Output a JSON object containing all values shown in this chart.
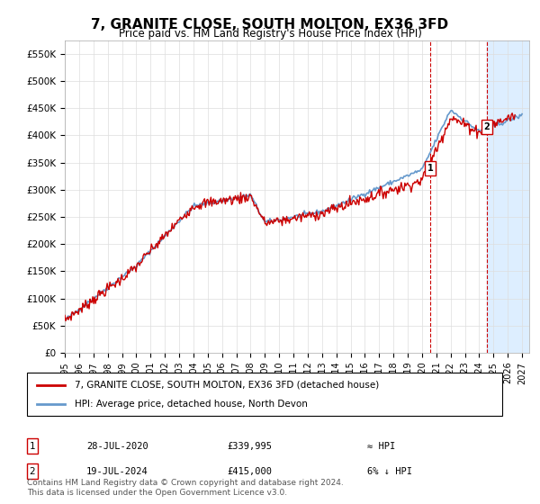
{
  "title": "7, GRANITE CLOSE, SOUTH MOLTON, EX36 3FD",
  "subtitle": "Price paid vs. HM Land Registry's House Price Index (HPI)",
  "ylabel_ticks": [
    "£0",
    "£50K",
    "£100K",
    "£150K",
    "£200K",
    "£250K",
    "£300K",
    "£350K",
    "£400K",
    "£450K",
    "£500K",
    "£550K"
  ],
  "ytick_vals": [
    0,
    50000,
    100000,
    150000,
    200000,
    250000,
    300000,
    350000,
    400000,
    450000,
    500000,
    550000
  ],
  "ylim": [
    0,
    575000
  ],
  "xlim_start": 1995.0,
  "xlim_end": 2027.5,
  "transaction1": {
    "date_num": 2020.57,
    "price": 339995,
    "label": "1"
  },
  "transaction2": {
    "date_num": 2024.54,
    "price": 415000,
    "label": "2"
  },
  "legend_line1": "7, GRANITE CLOSE, SOUTH MOLTON, EX36 3FD (detached house)",
  "legend_line2": "HPI: Average price, detached house, North Devon",
  "table_rows": [
    {
      "num": "1",
      "date": "28-JUL-2020",
      "price": "£339,995",
      "relation": "≈ HPI"
    },
    {
      "num": "2",
      "date": "19-JUL-2024",
      "price": "£415,000",
      "relation": "6% ↓ HPI"
    }
  ],
  "footer": "Contains HM Land Registry data © Crown copyright and database right 2024.\nThis data is licensed under the Open Government Licence v3.0.",
  "hpi_color": "#6699cc",
  "price_color": "#cc0000",
  "shade_start": 2024.54,
  "shade_color": "#ddeeff",
  "grid_color": "#dddddd",
  "background_color": "#ffffff"
}
